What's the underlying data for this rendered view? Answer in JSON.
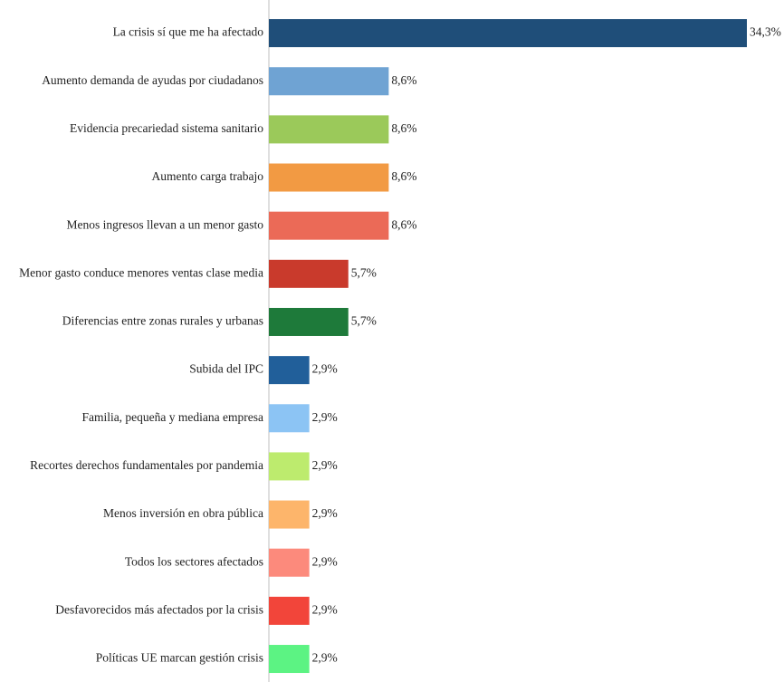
{
  "chart_data": {
    "type": "bar",
    "orientation": "horizontal",
    "categories": [
      "La crisis sí que me ha afectado",
      "Aumento demanda de ayudas por ciudadanos",
      "Evidencia precariedad sistema sanitario",
      "Aumento carga trabajo",
      "Menos ingresos llevan a un menor gasto",
      "Menor gasto conduce menores ventas clase media",
      "Diferencias entre zonas rurales y urbanas",
      "Subida del IPC",
      "Familia, pequeña y mediana empresa",
      "Recortes derechos fundamentales por pandemia",
      "Menos inversión en obra pública",
      "Todos los sectores afectados",
      "Desfavorecidos más afectados por la crisis",
      "Políticas UE marcan gestión crisis"
    ],
    "values": [
      34.3,
      8.6,
      8.6,
      8.6,
      8.6,
      5.7,
      5.7,
      2.9,
      2.9,
      2.9,
      2.9,
      2.9,
      2.9,
      2.9
    ],
    "value_labels": [
      "34,3%",
      "8,6%",
      "8,6%",
      "8,6%",
      "8,6%",
      "5,7%",
      "5,7%",
      "2,9%",
      "2,9%",
      "2,9%",
      "2,9%",
      "2,9%",
      "2,9%",
      "2,9%"
    ],
    "colors": [
      "#1F4E79",
      "#6FA3D3",
      "#9BC95A",
      "#F29A43",
      "#EB6A57",
      "#C93A2C",
      "#1E7A3A",
      "#215F9A",
      "#8CC4F4",
      "#BDEB6E",
      "#FDB56B",
      "#FC8A7C",
      "#F2453A",
      "#5CF383"
    ],
    "xlim": [
      0,
      34.3
    ],
    "grid": false,
    "legend": "none",
    "title": "",
    "xlabel": "",
    "ylabel": ""
  }
}
